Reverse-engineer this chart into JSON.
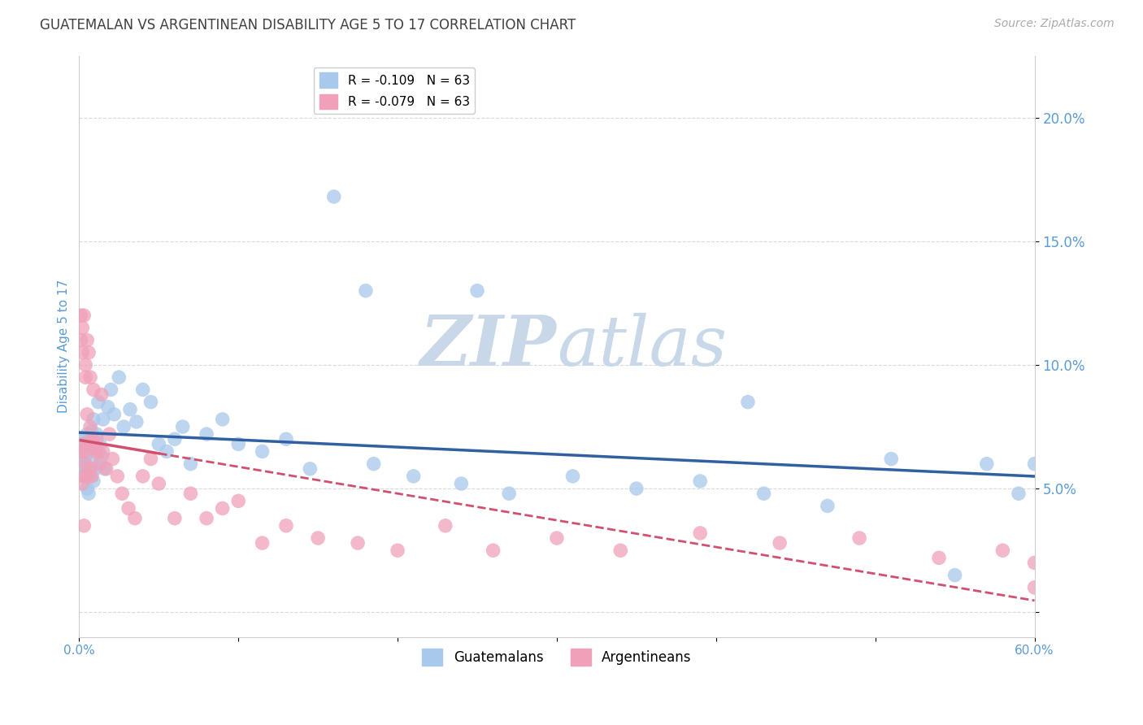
{
  "title": "GUATEMALAN VS ARGENTINEAN DISABILITY AGE 5 TO 17 CORRELATION CHART",
  "source": "Source: ZipAtlas.com",
  "ylabel": "Disability Age 5 to 17",
  "xlim": [
    0.0,
    0.6
  ],
  "ylim": [
    -0.01,
    0.225
  ],
  "xticks": [
    0.0,
    0.1,
    0.2,
    0.3,
    0.4,
    0.5,
    0.6
  ],
  "xticklabels": [
    "0.0%",
    "",
    "",
    "",
    "",
    "",
    "60.0%"
  ],
  "yticks": [
    0.0,
    0.05,
    0.1,
    0.15,
    0.2
  ],
  "yticklabels": [
    "",
    "5.0%",
    "10.0%",
    "15.0%",
    "20.0%"
  ],
  "legend_blue_label": "R = -0.109   N = 63",
  "legend_pink_label": "R = -0.079   N = 63",
  "blue_color": "#A8C8EC",
  "pink_color": "#F0A0B8",
  "trend_blue_color": "#3060A0",
  "trend_pink_color": "#D05070",
  "axis_label_color": "#5B9BD5",
  "title_color": "#404040",
  "watermark_color": "#C8D8E8",
  "background_color": "#FFFFFF",
  "grid_color": "#D8D8D8",
  "guatemalan_x": [
    0.001,
    0.002,
    0.002,
    0.003,
    0.003,
    0.004,
    0.004,
    0.005,
    0.005,
    0.006,
    0.006,
    0.007,
    0.007,
    0.008,
    0.008,
    0.009,
    0.009,
    0.01,
    0.01,
    0.011,
    0.012,
    0.013,
    0.014,
    0.015,
    0.016,
    0.018,
    0.02,
    0.022,
    0.025,
    0.028,
    0.032,
    0.036,
    0.04,
    0.045,
    0.05,
    0.055,
    0.06,
    0.065,
    0.07,
    0.08,
    0.09,
    0.1,
    0.115,
    0.13,
    0.145,
    0.16,
    0.185,
    0.21,
    0.24,
    0.27,
    0.31,
    0.35,
    0.39,
    0.43,
    0.47,
    0.51,
    0.55,
    0.57,
    0.59,
    0.6,
    0.18,
    0.25,
    0.42
  ],
  "guatemalan_y": [
    0.065,
    0.07,
    0.06,
    0.055,
    0.068,
    0.063,
    0.058,
    0.072,
    0.05,
    0.065,
    0.048,
    0.07,
    0.055,
    0.073,
    0.06,
    0.078,
    0.053,
    0.066,
    0.058,
    0.072,
    0.085,
    0.068,
    0.063,
    0.078,
    0.058,
    0.083,
    0.09,
    0.08,
    0.095,
    0.075,
    0.082,
    0.077,
    0.09,
    0.085,
    0.068,
    0.065,
    0.07,
    0.075,
    0.06,
    0.072,
    0.078,
    0.068,
    0.065,
    0.07,
    0.058,
    0.168,
    0.06,
    0.055,
    0.052,
    0.048,
    0.055,
    0.05,
    0.053,
    0.048,
    0.043,
    0.062,
    0.015,
    0.06,
    0.048,
    0.06,
    0.13,
    0.13,
    0.085
  ],
  "argentinean_x": [
    0.001,
    0.001,
    0.002,
    0.002,
    0.002,
    0.003,
    0.003,
    0.003,
    0.004,
    0.004,
    0.004,
    0.005,
    0.005,
    0.005,
    0.006,
    0.006,
    0.007,
    0.007,
    0.007,
    0.008,
    0.008,
    0.009,
    0.009,
    0.01,
    0.011,
    0.012,
    0.013,
    0.014,
    0.015,
    0.017,
    0.019,
    0.021,
    0.024,
    0.027,
    0.031,
    0.035,
    0.04,
    0.045,
    0.05,
    0.06,
    0.07,
    0.08,
    0.09,
    0.1,
    0.115,
    0.13,
    0.15,
    0.175,
    0.2,
    0.23,
    0.26,
    0.3,
    0.34,
    0.39,
    0.44,
    0.49,
    0.54,
    0.58,
    0.6,
    0.6,
    0.001,
    0.002,
    0.003
  ],
  "argentinean_y": [
    0.12,
    0.11,
    0.115,
    0.105,
    0.068,
    0.12,
    0.065,
    0.055,
    0.1,
    0.095,
    0.06,
    0.11,
    0.08,
    0.055,
    0.105,
    0.068,
    0.095,
    0.075,
    0.058,
    0.07,
    0.055,
    0.09,
    0.068,
    0.065,
    0.07,
    0.065,
    0.06,
    0.088,
    0.065,
    0.058,
    0.072,
    0.062,
    0.055,
    0.048,
    0.042,
    0.038,
    0.055,
    0.062,
    0.052,
    0.038,
    0.048,
    0.038,
    0.042,
    0.045,
    0.028,
    0.035,
    0.03,
    0.028,
    0.025,
    0.035,
    0.025,
    0.03,
    0.025,
    0.032,
    0.028,
    0.03,
    0.022,
    0.025,
    0.02,
    0.01,
    0.065,
    0.052,
    0.035
  ]
}
